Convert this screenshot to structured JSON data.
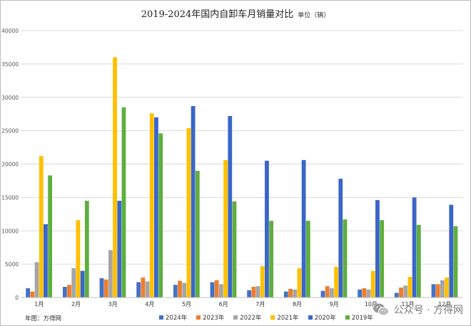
{
  "chart_data": {
    "type": "bar",
    "title": "2019-2024年国内自卸车月销量对比",
    "unit": "单位（辆）",
    "categories": [
      "1月",
      "2月",
      "3月",
      "4月",
      "5月",
      "6月",
      "7月",
      "8月",
      "9月",
      "10月",
      "11月",
      "12月"
    ],
    "ylim": [
      0,
      40000
    ],
    "yticks": [
      0,
      5000,
      10000,
      15000,
      20000,
      25000,
      30000,
      35000,
      40000
    ],
    "grid": true,
    "legend_position": "bottom",
    "series": [
      {
        "name": "2024年",
        "color": "#4472c4",
        "values": [
          1400,
          1600,
          2900,
          2300,
          1900,
          2300,
          1100,
          900,
          1000,
          1200,
          700,
          2000
        ]
      },
      {
        "name": "2023年",
        "color": "#ed7d31",
        "values": [
          900,
          1900,
          2700,
          3000,
          2500,
          2600,
          1600,
          1300,
          1700,
          1400,
          1500,
          2000
        ]
      },
      {
        "name": "2022年",
        "color": "#a5a5a5",
        "values": [
          5300,
          4400,
          7100,
          2400,
          2200,
          2000,
          1700,
          1200,
          1400,
          1200,
          1800,
          2600
        ]
      },
      {
        "name": "2021年",
        "color": "#ffc000",
        "values": [
          21200,
          11600,
          36000,
          27600,
          25400,
          20600,
          4700,
          4400,
          4600,
          4000,
          3100,
          3000
        ]
      },
      {
        "name": "2020年",
        "color": "#3a66c8",
        "values": [
          11000,
          4000,
          14500,
          27000,
          28700,
          27200,
          20500,
          20600,
          17800,
          14600,
          15000,
          13900
        ]
      },
      {
        "name": "2019年",
        "color": "#5fae3f",
        "values": [
          18300,
          14500,
          28500,
          24600,
          19000,
          14400,
          11500,
          11500,
          11700,
          11600,
          10900,
          10700
        ]
      }
    ]
  },
  "source": "年图：方得网",
  "watermark": "公众号 · 方得网",
  "watermark_icon": "wechat-icon"
}
